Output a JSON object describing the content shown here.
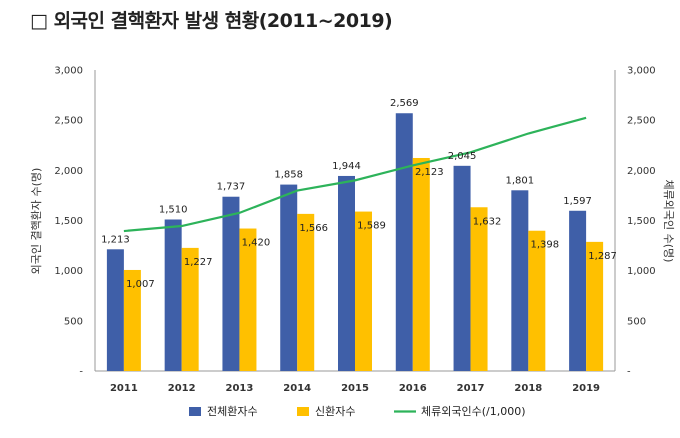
{
  "title": "□ 외국인 결핵환자 발생 현황(2011~2019)",
  "chart_data": {
    "type": "bar",
    "categories": [
      "2011",
      "2012",
      "2013",
      "2014",
      "2015",
      "2016",
      "2017",
      "2018",
      "2019"
    ],
    "series": [
      {
        "name": "전체환자수",
        "type": "bar",
        "axis": "left",
        "color": "#3f5fa8",
        "values": [
          1213,
          1510,
          1737,
          1858,
          1944,
          2569,
          2045,
          1801,
          1597
        ]
      },
      {
        "name": "신환자수",
        "type": "bar",
        "axis": "left",
        "color": "#ffc000",
        "values": [
          1007,
          1227,
          1420,
          1566,
          1589,
          2123,
          1632,
          1398,
          1287
        ]
      },
      {
        "name": "체류외국인수(/1,000)",
        "type": "line",
        "axis": "right",
        "color": "#2db35a",
        "values": [
          1395,
          1445,
          1576,
          1798,
          1900,
          2049,
          2180,
          2367,
          2524
        ]
      }
    ],
    "ylabel_left": "외국인 결핵환자 수(명)",
    "ylabel_right": "체류외국인 수(명)",
    "ylim_left": [
      0,
      3000
    ],
    "ylim_right": [
      0,
      3000
    ],
    "yticks": [
      "-",
      "500",
      "1,000",
      "1,500",
      "2,000",
      "2,500",
      "3,000"
    ],
    "grid": false,
    "legend_position": "bottom"
  }
}
